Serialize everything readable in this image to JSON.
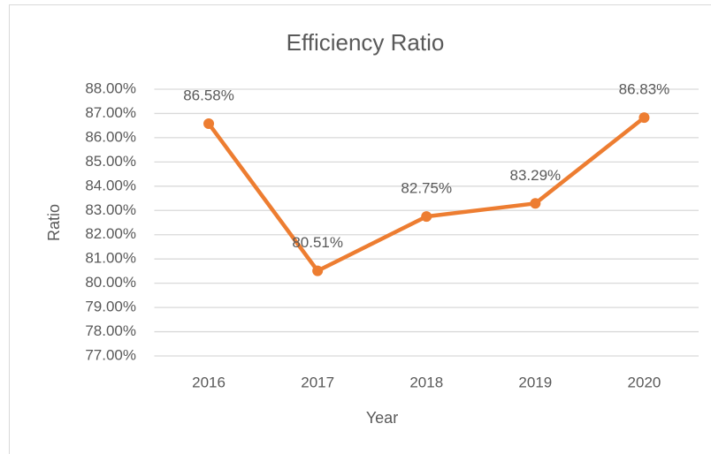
{
  "chart_data": {
    "type": "line",
    "title": "Efficiency Ratio",
    "x_label": "Year",
    "y_label": "Ratio",
    "categories": [
      "2016",
      "2017",
      "2018",
      "2019",
      "2020"
    ],
    "series": [
      {
        "name": "Ratio",
        "color": "#ed7d31",
        "values": [
          86.58,
          80.51,
          82.75,
          83.29,
          86.83
        ],
        "value_labels": [
          "86.58%",
          "80.51%",
          "82.75%",
          "83.29%",
          "86.83%"
        ]
      }
    ],
    "ylim": [
      77,
      88
    ],
    "yticks": [
      {
        "value": 77,
        "label": "77.00%"
      },
      {
        "value": 78,
        "label": "78.00%"
      },
      {
        "value": 79,
        "label": "79.00%"
      },
      {
        "value": 80,
        "label": "80.00%"
      },
      {
        "value": 81,
        "label": "81.00%"
      },
      {
        "value": 82,
        "label": "82.00%"
      },
      {
        "value": 83,
        "label": "83.00%"
      },
      {
        "value": 84,
        "label": "84.00%"
      },
      {
        "value": 85,
        "label": "85.00%"
      },
      {
        "value": 86,
        "label": "86.00%"
      },
      {
        "value": 87,
        "label": "87.00%"
      },
      {
        "value": 88,
        "label": "88.00%"
      }
    ],
    "grid": true
  }
}
